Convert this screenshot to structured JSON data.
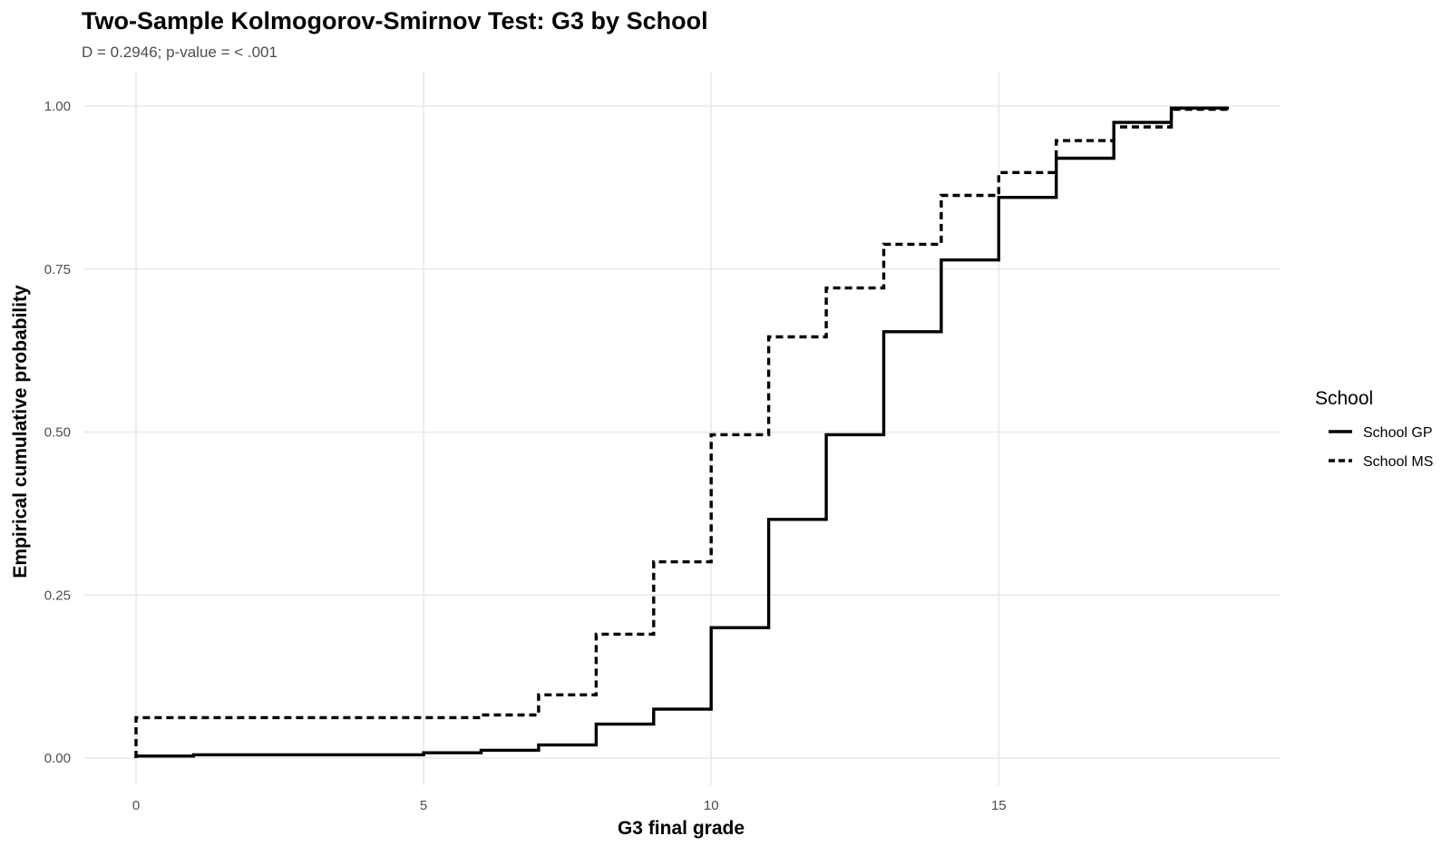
{
  "chart_data": {
    "type": "line",
    "subtype": "step-ecdf",
    "title": "Two-Sample Kolmogorov-Smirnov Test: G3 by School",
    "subtitle": "D = 0.2946; p-value = < .001",
    "xlabel": "G3 final grade",
    "ylabel": "Empirical cumulative probability",
    "xlim": [
      0,
      19
    ],
    "ylim": [
      0,
      1
    ],
    "x_ticks": [
      0,
      5,
      10,
      15
    ],
    "x_tick_labels": [
      "0",
      "5",
      "10",
      "15"
    ],
    "y_ticks": [
      0,
      0.25,
      0.5,
      0.75,
      1
    ],
    "y_tick_labels": [
      "0.00",
      "0.25",
      "0.50",
      "0.75",
      "1.00"
    ],
    "grid": true,
    "legend": {
      "title": "School",
      "position": "right"
    },
    "series": [
      {
        "name": "School GP",
        "line_style": "solid",
        "color": "#000000",
        "x": [
          0,
          1,
          5,
          6,
          7,
          8,
          9,
          10,
          11,
          12,
          13,
          14,
          15,
          16,
          17,
          18,
          19
        ],
        "y": [
          0.003,
          0.005,
          0.008,
          0.012,
          0.02,
          0.052,
          0.075,
          0.2,
          0.366,
          0.496,
          0.654,
          0.764,
          0.86,
          0.92,
          0.975,
          0.997,
          0.997
        ]
      },
      {
        "name": "School MS",
        "line_style": "dashed",
        "color": "#000000",
        "x": [
          0,
          6,
          7,
          8,
          9,
          10,
          11,
          12,
          13,
          14,
          15,
          16,
          17,
          18,
          19
        ],
        "y": [
          0.062,
          0.066,
          0.097,
          0.19,
          0.301,
          0.496,
          0.646,
          0.721,
          0.788,
          0.863,
          0.898,
          0.947,
          0.968,
          0.995,
          0.995
        ]
      }
    ]
  }
}
